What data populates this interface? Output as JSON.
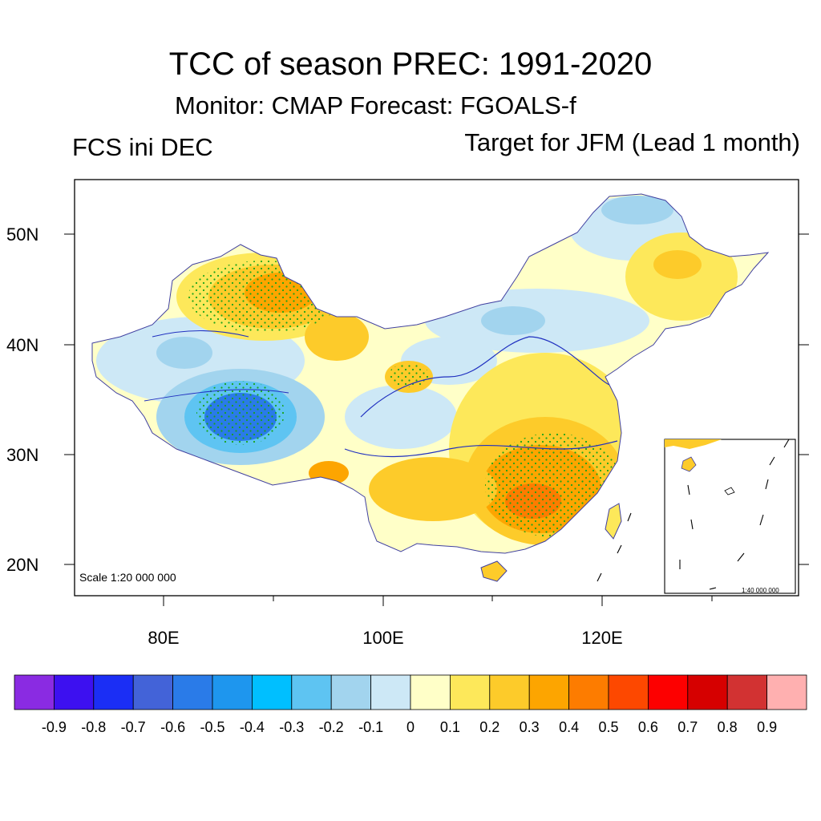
{
  "header": {
    "title": "TCC of season PREC: 1991-2020",
    "subtitle": "Monitor: CMAP   Forecast: FGOALS-f",
    "left_label": "FCS ini DEC",
    "right_label": "Target for JFM (Lead 1 month)"
  },
  "map": {
    "lat_labels": [
      "50N",
      "40N",
      "30N",
      "20N"
    ],
    "lon_labels": [
      "80E",
      "100E",
      "120E"
    ],
    "scale_main": "Scale 1:20 000 000",
    "scale_inset": "1:40 000 000"
  },
  "colorbar": {
    "colors": [
      "#8a2be2",
      "#3d10f0",
      "#1b2ef5",
      "#4363d8",
      "#2a7be8",
      "#1e96ee",
      "#00bfff",
      "#5ec4f2",
      "#a2d4ee",
      "#cde8f6",
      "#ffffc8",
      "#fde85a",
      "#fdcb2a",
      "#fda500",
      "#fd7c00",
      "#fd4800",
      "#fd0000",
      "#d60000",
      "#d23232",
      "#ffb0b0"
    ],
    "labels": [
      "-0.9",
      "-0.8",
      "-0.7",
      "-0.6",
      "-0.5",
      "-0.4",
      "-0.3",
      "-0.2",
      "-0.1",
      "0",
      "0.1",
      "0.2",
      "0.3",
      "0.4",
      "0.5",
      "0.6",
      "0.7",
      "0.8",
      "0.9"
    ]
  }
}
